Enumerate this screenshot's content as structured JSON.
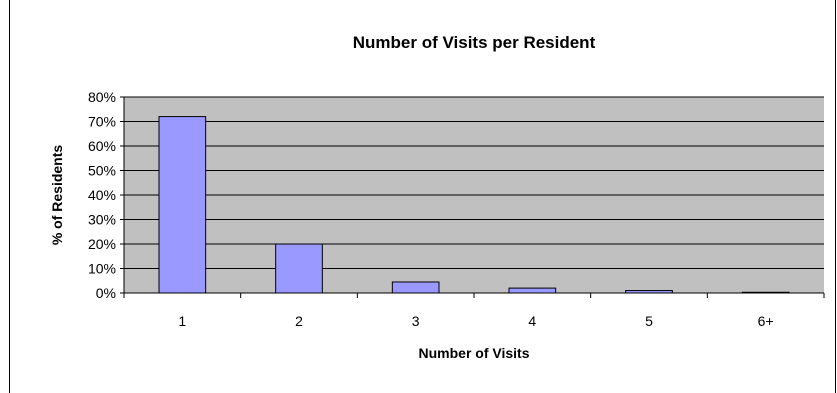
{
  "chart_data": {
    "type": "bar",
    "title": "Number of Visits per Resident",
    "xlabel": "Number of Visits",
    "ylabel": "% of Residents",
    "categories": [
      "1",
      "2",
      "3",
      "4",
      "5",
      "6+"
    ],
    "values": [
      72,
      20,
      4.5,
      2,
      1,
      0.3
    ],
    "ylim": [
      0,
      80
    ],
    "yticks": [
      0,
      10,
      20,
      30,
      40,
      50,
      60,
      70,
      80
    ],
    "ytick_labels": [
      "0%",
      "10%",
      "20%",
      "30%",
      "40%",
      "50%",
      "60%",
      "70%",
      "80%"
    ],
    "grid": true,
    "legend": "none",
    "colors": {
      "bar_fill": "#9999FF",
      "plot_background": "#C0C0C0",
      "gridline": "#000000"
    }
  }
}
